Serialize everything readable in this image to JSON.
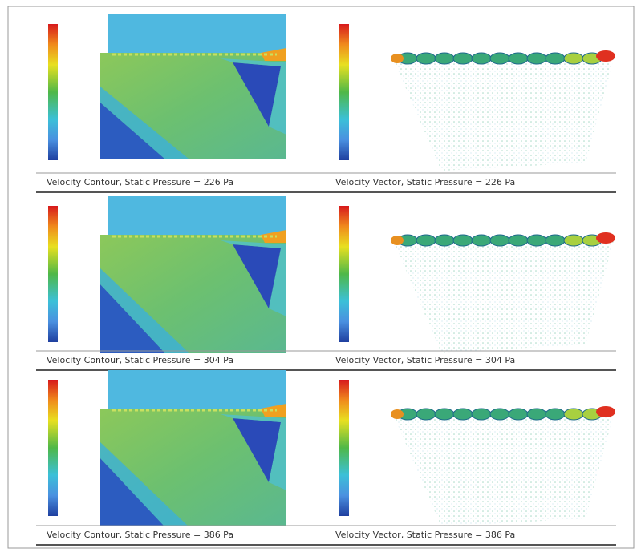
{
  "panels": [
    {
      "contour_caption": "Velocity Contour, Static Pressure = 226 Pa",
      "vector_caption": "Velocity Vector, Static Pressure = 226 Pa"
    },
    {
      "contour_caption": "Velocity Contour, Static Pressure = 304 Pa",
      "vector_caption": "Velocity Vector, Static Pressure = 304 Pa"
    },
    {
      "contour_caption": "Velocity Contour, Static Pressure = 386 Pa",
      "vector_caption": "Velocity Vector, Static Pressure = 386 Pa"
    }
  ]
}
